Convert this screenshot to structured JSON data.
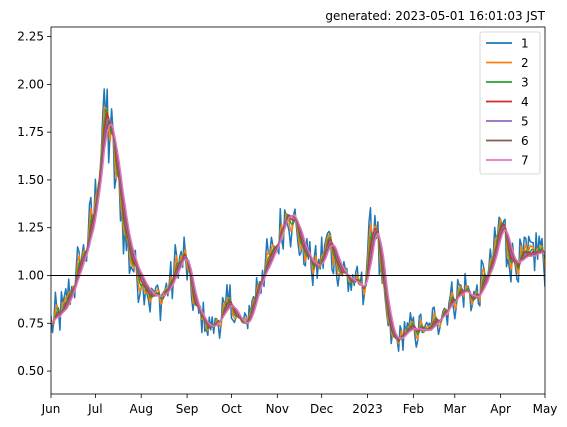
{
  "chart_data": {
    "type": "line",
    "annotation": "generated: 2023-05-01 16:01:03 JST",
    "x_start": "2022-06-01",
    "x_end": "2023-05-01",
    "x_tick_labels": [
      "Jun",
      "Jul",
      "Aug",
      "Sep",
      "Oct",
      "Nov",
      "Dec",
      "2023",
      "Feb",
      "Mar",
      "Apr",
      "May"
    ],
    "x_tick_dates": [
      "2022-06-01",
      "2022-07-01",
      "2022-08-01",
      "2022-09-01",
      "2022-10-01",
      "2022-11-01",
      "2022-12-01",
      "2023-01-01",
      "2023-02-01",
      "2023-03-01",
      "2023-04-01",
      "2023-05-01"
    ],
    "ylim": [
      0.38,
      2.3
    ],
    "y_ticks": [
      0.5,
      0.75,
      1.0,
      1.25,
      1.5,
      1.75,
      2.0,
      2.25
    ],
    "y_tick_labels": [
      "0.50",
      "0.75",
      "1.00",
      "1.25",
      "1.50",
      "1.75",
      "2.00",
      "2.25"
    ],
    "reference_line": 1.0,
    "grid": false,
    "legend_position": "top-right",
    "colors": [
      "#1f77b4",
      "#ff7f0e",
      "#2ca02c",
      "#d62728",
      "#9467bd",
      "#8c564b",
      "#e377c2"
    ],
    "legend": [
      "1",
      "2",
      "3",
      "4",
      "5",
      "6",
      "7"
    ],
    "trend": {
      "dates": [
        "2022-06-01",
        "2022-06-05",
        "2022-06-10",
        "2022-06-15",
        "2022-06-20",
        "2022-06-25",
        "2022-06-30",
        "2022-07-03",
        "2022-07-07",
        "2022-07-11",
        "2022-07-15",
        "2022-07-19",
        "2022-07-23",
        "2022-07-27",
        "2022-08-01",
        "2022-08-05",
        "2022-08-10",
        "2022-08-15",
        "2022-08-20",
        "2022-08-25",
        "2022-08-30",
        "2022-09-05",
        "2022-09-10",
        "2022-09-15",
        "2022-09-20",
        "2022-09-25",
        "2022-09-30",
        "2022-10-05",
        "2022-10-10",
        "2022-10-15",
        "2022-10-20",
        "2022-10-25",
        "2022-10-30",
        "2022-11-04",
        "2022-11-08",
        "2022-11-12",
        "2022-11-16",
        "2022-11-20",
        "2022-11-25",
        "2022-11-30",
        "2022-12-05",
        "2022-12-10",
        "2022-12-15",
        "2022-12-20",
        "2022-12-25",
        "2022-12-29",
        "2023-01-02",
        "2023-01-06",
        "2023-01-10",
        "2023-01-15",
        "2023-01-20",
        "2023-01-25",
        "2023-01-30",
        "2023-02-05",
        "2023-02-10",
        "2023-02-15",
        "2023-02-20",
        "2023-02-25",
        "2023-03-02",
        "2023-03-07",
        "2023-03-12",
        "2023-03-17",
        "2023-03-22",
        "2023-03-27",
        "2023-04-01",
        "2023-04-05",
        "2023-04-10",
        "2023-04-15",
        "2023-04-20",
        "2023-04-25",
        "2023-05-01"
      ],
      "values": [
        0.75,
        0.8,
        0.82,
        0.95,
        1.05,
        1.18,
        1.35,
        1.6,
        1.85,
        1.75,
        1.55,
        1.3,
        1.15,
        1.05,
        0.98,
        0.92,
        0.88,
        0.9,
        0.95,
        1.05,
        1.12,
        0.85,
        0.78,
        0.72,
        0.75,
        0.82,
        0.85,
        0.78,
        0.72,
        0.85,
        1.0,
        1.05,
        1.15,
        1.28,
        1.35,
        1.3,
        1.2,
        1.1,
        1.05,
        1.05,
        1.2,
        1.1,
        1.0,
        0.98,
        0.95,
        0.92,
        1.15,
        1.3,
        1.0,
        0.72,
        0.65,
        0.7,
        0.72,
        0.72,
        0.7,
        0.75,
        0.8,
        0.85,
        0.9,
        0.92,
        0.88,
        0.9,
        1.0,
        1.1,
        1.3,
        1.15,
        1.05,
        1.1,
        1.08,
        1.12,
        1.1
      ]
    },
    "series": [
      {
        "name": "1",
        "amplitude": 0.16,
        "smooth": 1
      },
      {
        "name": "2",
        "amplitude": 0.11,
        "smooth": 2
      },
      {
        "name": "3",
        "amplitude": 0.08,
        "smooth": 3
      },
      {
        "name": "4",
        "amplitude": 0.06,
        "smooth": 4
      },
      {
        "name": "5",
        "amplitude": 0.045,
        "smooth": 5
      },
      {
        "name": "6",
        "amplitude": 0.035,
        "smooth": 6
      },
      {
        "name": "7",
        "amplitude": 0.025,
        "smooth": 7
      }
    ]
  }
}
